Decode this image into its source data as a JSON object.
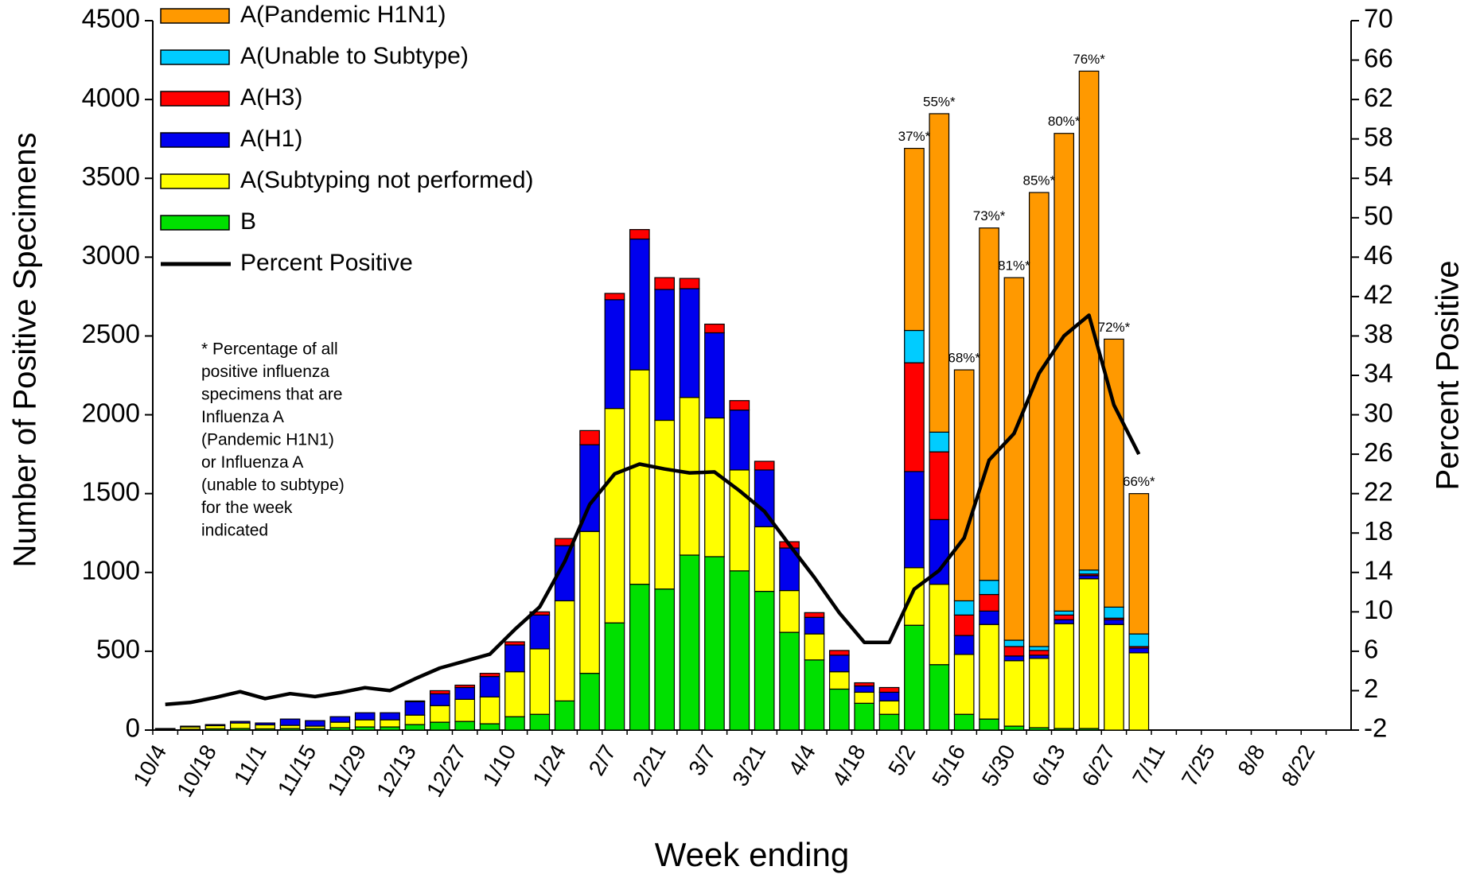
{
  "chart_data": {
    "type": "stacked_bar_line",
    "xlabel": "Week ending",
    "ylabel": "Number of Positive Specimens",
    "y2label": "Percent Positive",
    "categories": [
      "10/4",
      null,
      "10/18",
      null,
      "11/1",
      null,
      "11/15",
      null,
      "11/29",
      null,
      "12/13",
      null,
      "12/27",
      null,
      "1/10",
      null,
      "1/24",
      null,
      "2/7",
      null,
      "2/21",
      null,
      "3/7",
      null,
      "3/21",
      null,
      "4/4",
      null,
      "4/18",
      null,
      "5/2",
      null,
      "5/16",
      null,
      "5/30",
      null,
      "6/13",
      null,
      "6/27",
      null,
      "7/11",
      null,
      "7/25",
      null,
      "8/8",
      null,
      "8/22",
      null
    ],
    "ylim": [
      0,
      4500
    ],
    "yticks": [
      0,
      500,
      1000,
      1500,
      2000,
      2500,
      3000,
      3500,
      4000,
      4500
    ],
    "y2lim": [
      -2,
      70
    ],
    "y2ticks": [
      -2,
      2,
      6,
      10,
      14,
      18,
      22,
      26,
      30,
      34,
      38,
      42,
      46,
      50,
      54,
      58,
      62,
      66,
      70
    ],
    "series": [
      {
        "name": "B",
        "color": "#00e000",
        "values": [
          3,
          5,
          8,
          10,
          8,
          10,
          10,
          15,
          20,
          20,
          35,
          50,
          55,
          40,
          85,
          100,
          185,
          360,
          680,
          925,
          895,
          1110,
          1100,
          1010,
          880,
          620,
          445,
          260,
          170,
          100,
          665,
          415,
          100,
          70,
          25,
          15,
          10,
          10,
          0,
          0,
          null,
          null,
          null,
          null,
          null,
          null,
          null,
          null
        ]
      },
      {
        "name": "A(Subtyping not performed)",
        "color": "#ffff00",
        "values": [
          5,
          15,
          20,
          35,
          25,
          20,
          15,
          35,
          45,
          45,
          60,
          105,
          140,
          170,
          285,
          415,
          635,
          900,
          1360,
          1360,
          1070,
          1000,
          880,
          640,
          410,
          265,
          165,
          110,
          70,
          85,
          365,
          510,
          380,
          600,
          415,
          440,
          665,
          950,
          670,
          490,
          null,
          null,
          null,
          null,
          null,
          null,
          null,
          null
        ]
      },
      {
        "name": "A(H1)",
        "color": "#0000ee",
        "values": [
          2,
          5,
          7,
          10,
          12,
          40,
          35,
          35,
          45,
          45,
          85,
          75,
          75,
          130,
          170,
          215,
          350,
          550,
          690,
          830,
          830,
          690,
          540,
          380,
          360,
          270,
          105,
          105,
          40,
          55,
          610,
          410,
          120,
          85,
          30,
          20,
          25,
          20,
          30,
          30,
          null,
          null,
          null,
          null,
          null,
          null,
          null,
          null
        ]
      },
      {
        "name": "A(H3)",
        "color": "#ff0000",
        "values": [
          0,
          0,
          0,
          0,
          0,
          0,
          0,
          0,
          0,
          0,
          5,
          20,
          15,
          20,
          20,
          20,
          45,
          90,
          40,
          60,
          75,
          65,
          55,
          60,
          55,
          40,
          30,
          30,
          20,
          30,
          690,
          430,
          130,
          105,
          60,
          30,
          30,
          10,
          10,
          10,
          null,
          null,
          null,
          null,
          null,
          null,
          null,
          null
        ]
      },
      {
        "name": "A(Unable to Subtype)",
        "color": "#00ccff",
        "values": [
          0,
          0,
          0,
          0,
          0,
          0,
          0,
          0,
          0,
          0,
          0,
          0,
          0,
          0,
          0,
          0,
          0,
          0,
          0,
          0,
          0,
          0,
          0,
          0,
          0,
          0,
          0,
          0,
          0,
          0,
          205,
          125,
          90,
          90,
          40,
          25,
          25,
          25,
          70,
          80,
          null,
          null,
          null,
          null,
          null,
          null,
          null,
          null
        ]
      },
      {
        "name": "A(Pandemic H1N1)",
        "color": "#ff9900",
        "values": [
          0,
          0,
          0,
          0,
          0,
          0,
          0,
          0,
          0,
          0,
          0,
          0,
          0,
          0,
          0,
          0,
          0,
          0,
          0,
          0,
          0,
          0,
          0,
          0,
          0,
          0,
          0,
          0,
          0,
          0,
          1155,
          2020,
          1465,
          2235,
          2300,
          2880,
          3030,
          3165,
          1700,
          890,
          null,
          null,
          null,
          null,
          null,
          null,
          null,
          null
        ]
      },
      {
        "name": "Percent Positive",
        "color": "#000000",
        "axis": "y2",
        "values": [
          0.6,
          0.8,
          1.3,
          1.9,
          1.2,
          1.7,
          1.4,
          1.8,
          2.3,
          2.0,
          3.2,
          4.3,
          5.0,
          5.7,
          8.2,
          10.5,
          15.1,
          20.9,
          24.0,
          25.0,
          24.5,
          24.1,
          24.2,
          22.3,
          20.2,
          16.8,
          13.5,
          9.9,
          6.9,
          6.9,
          12.3,
          14.2,
          17.5,
          25.4,
          28.1,
          34.2,
          38.0,
          40.1,
          31.0,
          26.0,
          null,
          null,
          null,
          null,
          null,
          null,
          null,
          null
        ]
      }
    ],
    "percent_labels": [
      null,
      null,
      null,
      null,
      null,
      null,
      null,
      null,
      null,
      null,
      null,
      null,
      null,
      null,
      null,
      null,
      null,
      null,
      null,
      null,
      null,
      null,
      null,
      null,
      null,
      null,
      null,
      null,
      null,
      null,
      "37%*",
      "55%*",
      "68%*",
      "73%*",
      "81%*",
      "85%*",
      "80%*",
      "76%*",
      "72%*",
      "66%*",
      null,
      null,
      null,
      null,
      null,
      null,
      null,
      null
    ],
    "note": [
      "* Percentage of all",
      "positive influenza",
      "specimens that are",
      "Influenza A",
      "(Pandemic H1N1)",
      "or Influenza A",
      "(unable to subtype)",
      "for the week",
      "indicated"
    ],
    "legend": "upper left"
  }
}
